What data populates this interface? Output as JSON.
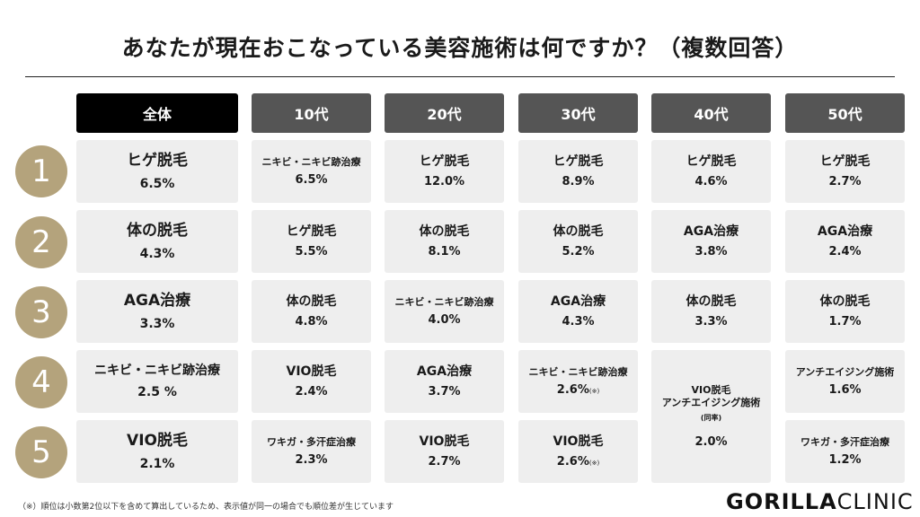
{
  "title": "あなたが現在おこなっている美容施術は何ですか？（複数回答）",
  "headers": [
    "全体",
    "10代",
    "20代",
    "30代",
    "40代",
    "50代"
  ],
  "ranks": [
    "1",
    "2",
    "3",
    "4",
    "5"
  ],
  "columns": {
    "all": [
      {
        "name": "ヒゲ脱毛",
        "value": "6.5%"
      },
      {
        "name": "体の脱毛",
        "value": "4.3%"
      },
      {
        "name": "AGA治療",
        "value": "3.3%"
      },
      {
        "name": "ニキビ・ニキビ跡治療",
        "value": "2.5 %"
      },
      {
        "name": "VIO脱毛",
        "value": "2.1%"
      }
    ],
    "teens": [
      {
        "name": "ニキビ・ニキビ跡治療",
        "value": "6.5%"
      },
      {
        "name": "ヒゲ脱毛",
        "value": "5.5%"
      },
      {
        "name": "体の脱毛",
        "value": "4.8%"
      },
      {
        "name": "VIO脱毛",
        "value": "2.4%"
      },
      {
        "name": "ワキガ・多汗症治療",
        "value": "2.3%"
      }
    ],
    "twenties": [
      {
        "name": "ヒゲ脱毛",
        "value": "12.0%"
      },
      {
        "name": "体の脱毛",
        "value": "8.1%"
      },
      {
        "name": "ニキビ・ニキビ跡治療",
        "value": "4.0%"
      },
      {
        "name": "AGA治療",
        "value": "3.7%"
      },
      {
        "name": "VIO脱毛",
        "value": "2.7%"
      }
    ],
    "thirties": [
      {
        "name": "ヒゲ脱毛",
        "value": "8.9%"
      },
      {
        "name": "体の脱毛",
        "value": "5.2%"
      },
      {
        "name": "AGA治療",
        "value": "4.3%"
      },
      {
        "name": "ニキビ・ニキビ跡治療",
        "value": "2.6%",
        "note": "(※)"
      },
      {
        "name": "VIO脱毛",
        "value": "2.6%",
        "note": "(※)"
      }
    ],
    "forties": [
      {
        "name": "ヒゲ脱毛",
        "value": "4.6%"
      },
      {
        "name": "AGA治療",
        "value": "3.8%"
      },
      {
        "name": "体の脱毛",
        "value": "3.3%"
      }
    ],
    "forties_tie": {
      "name1": "VIO脱毛",
      "name2": "アンチエイジング施術",
      "sub": "(同率)",
      "value": "2.0%"
    },
    "fifties": [
      {
        "name": "ヒゲ脱毛",
        "value": "2.7%"
      },
      {
        "name": "AGA治療",
        "value": "2.4%"
      },
      {
        "name": "体の脱毛",
        "value": "1.7%"
      },
      {
        "name": "アンチエイジング施術",
        "value": "1.6%"
      },
      {
        "name": "ワキガ・多汗症治療",
        "value": "1.2%"
      }
    ]
  },
  "footnote": "（※）順位は小数第2位以下を含めて算出しているため、表示値が同一の場合でも順位差が生じています",
  "logo": {
    "bold": "GORILLA",
    "light": "CLINIC"
  }
}
